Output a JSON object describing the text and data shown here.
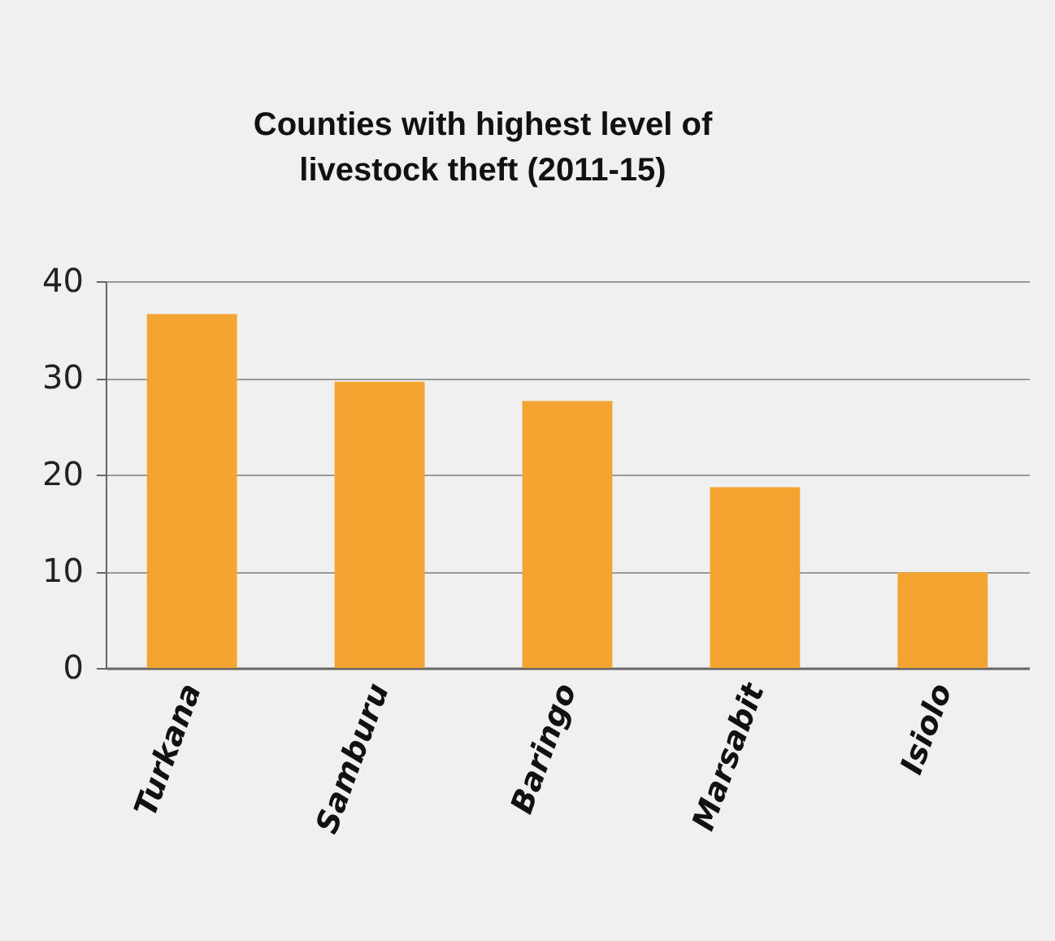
{
  "chart_data": {
    "type": "bar",
    "title": [
      "Counties with highest level of",
      "livestock theft (2011-15)"
    ],
    "categories": [
      "Turkana",
      "Samburu",
      "Baringo",
      "Marsabit",
      "Isiolo"
    ],
    "values": [
      36.6,
      29.6,
      27.6,
      18.7,
      9.9
    ],
    "color": "#f4a431",
    "ylim": [
      0,
      40
    ],
    "yticks": [
      0,
      10,
      20,
      30,
      40
    ],
    "grid": "y"
  }
}
